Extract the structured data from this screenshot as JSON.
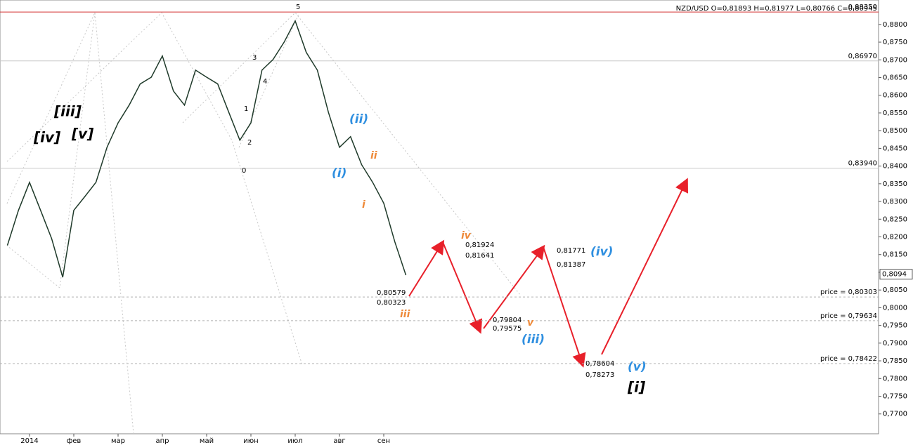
{
  "chart_data": {
    "type": "line",
    "header": "NZD/USD O=0,81893 H=0,81977 L=0,80766 C=0,80945",
    "categories": [
      null,
      null,
      "2014",
      null,
      null,
      null,
      "фев",
      null,
      null,
      null,
      "мар",
      null,
      null,
      null,
      "апр",
      null,
      null,
      null,
      "май",
      null,
      null,
      null,
      "июн",
      null,
      null,
      null,
      "июл",
      null,
      null,
      null,
      "авг",
      null,
      null,
      null,
      "сен",
      null,
      null
    ],
    "series": [
      {
        "color": "#1f3a2a",
        "values": [
          0.8176,
          0.8275,
          0.8354,
          0.8275,
          0.8195,
          0.8086,
          0.8275,
          0.8314,
          0.8354,
          0.8453,
          0.8522,
          0.8572,
          0.8632,
          0.8651,
          0.8711,
          0.8612,
          0.8572,
          0.8671,
          0.8651,
          0.8632,
          0.8552,
          0.8473,
          0.8522,
          0.8671,
          0.8701,
          0.875,
          0.881,
          0.8721,
          0.8671,
          0.8552,
          0.8453,
          0.8483,
          0.8404,
          0.8354,
          0.8295,
          0.8186,
          0.8092
        ]
      }
    ],
    "ylim": [
      0.7644,
      0.8869
    ],
    "yticks": [
      {
        "value": 0.77,
        "label": "0,7700"
      },
      {
        "value": 0.775,
        "label": "0,7750"
      },
      {
        "value": 0.78,
        "label": "0,7800"
      },
      {
        "value": 0.785,
        "label": "0,7850"
      },
      {
        "value": 0.79,
        "label": "0,7900"
      },
      {
        "value": 0.795,
        "label": "0,7950"
      },
      {
        "value": 0.8,
        "label": "0,8000"
      },
      {
        "value": 0.805,
        "label": "0,8050"
      },
      {
        "value": 0.81,
        "label": "0,8100"
      },
      {
        "value": 0.815,
        "label": "0,8150"
      },
      {
        "value": 0.82,
        "label": "0,8200"
      },
      {
        "value": 0.825,
        "label": "0,8250"
      },
      {
        "value": 0.83,
        "label": "0,8300"
      },
      {
        "value": 0.835,
        "label": "0,8350"
      },
      {
        "value": 0.84,
        "label": "0,8400"
      },
      {
        "value": 0.845,
        "label": "0,8450"
      },
      {
        "value": 0.85,
        "label": "0,8500"
      },
      {
        "value": 0.855,
        "label": "0,8550"
      },
      {
        "value": 0.86,
        "label": "0,8600"
      },
      {
        "value": 0.865,
        "label": "0,8650"
      },
      {
        "value": 0.87,
        "label": "0,8700"
      },
      {
        "value": 0.875,
        "label": "0,8750"
      },
      {
        "value": 0.88,
        "label": "0,8800"
      }
    ],
    "levels": [
      {
        "value": 0.8835,
        "label": "0,88350",
        "color": "#d43030",
        "dashed": false
      },
      {
        "value": 0.8697,
        "label": "0,86970",
        "color": "#c8c8c8",
        "dashed": false
      },
      {
        "value": 0.8394,
        "label": "0,83940",
        "color": "#c8c8c8",
        "dashed": false
      },
      {
        "value": 0.80303,
        "label": "price = 0,80303",
        "color": "#b0b0b0",
        "dashed": true
      },
      {
        "value": 0.79634,
        "label": "price = 0,79634",
        "color": "#b0b0b0",
        "dashed": true
      },
      {
        "value": 0.78422,
        "label": "price = 0,78422",
        "color": "#b0b0b0",
        "dashed": true
      }
    ],
    "current_price": {
      "value": 0.80945,
      "label": "0,8094"
    },
    "annotations": [
      "[iii]",
      "[iv]",
      "[v]",
      "(ii)",
      "(i)",
      "ii",
      "i",
      "0",
      "1",
      "2",
      "3",
      "4",
      "5",
      "iv",
      "iii",
      "v",
      "(iii)",
      "(iv)",
      "(v)",
      "[i]",
      "0,80579",
      "0,80323",
      "0,81924",
      "0,81641",
      "0,79804",
      "0,79575",
      "0,81771",
      "0,81387",
      "0,78604",
      "0,78273"
    ]
  }
}
